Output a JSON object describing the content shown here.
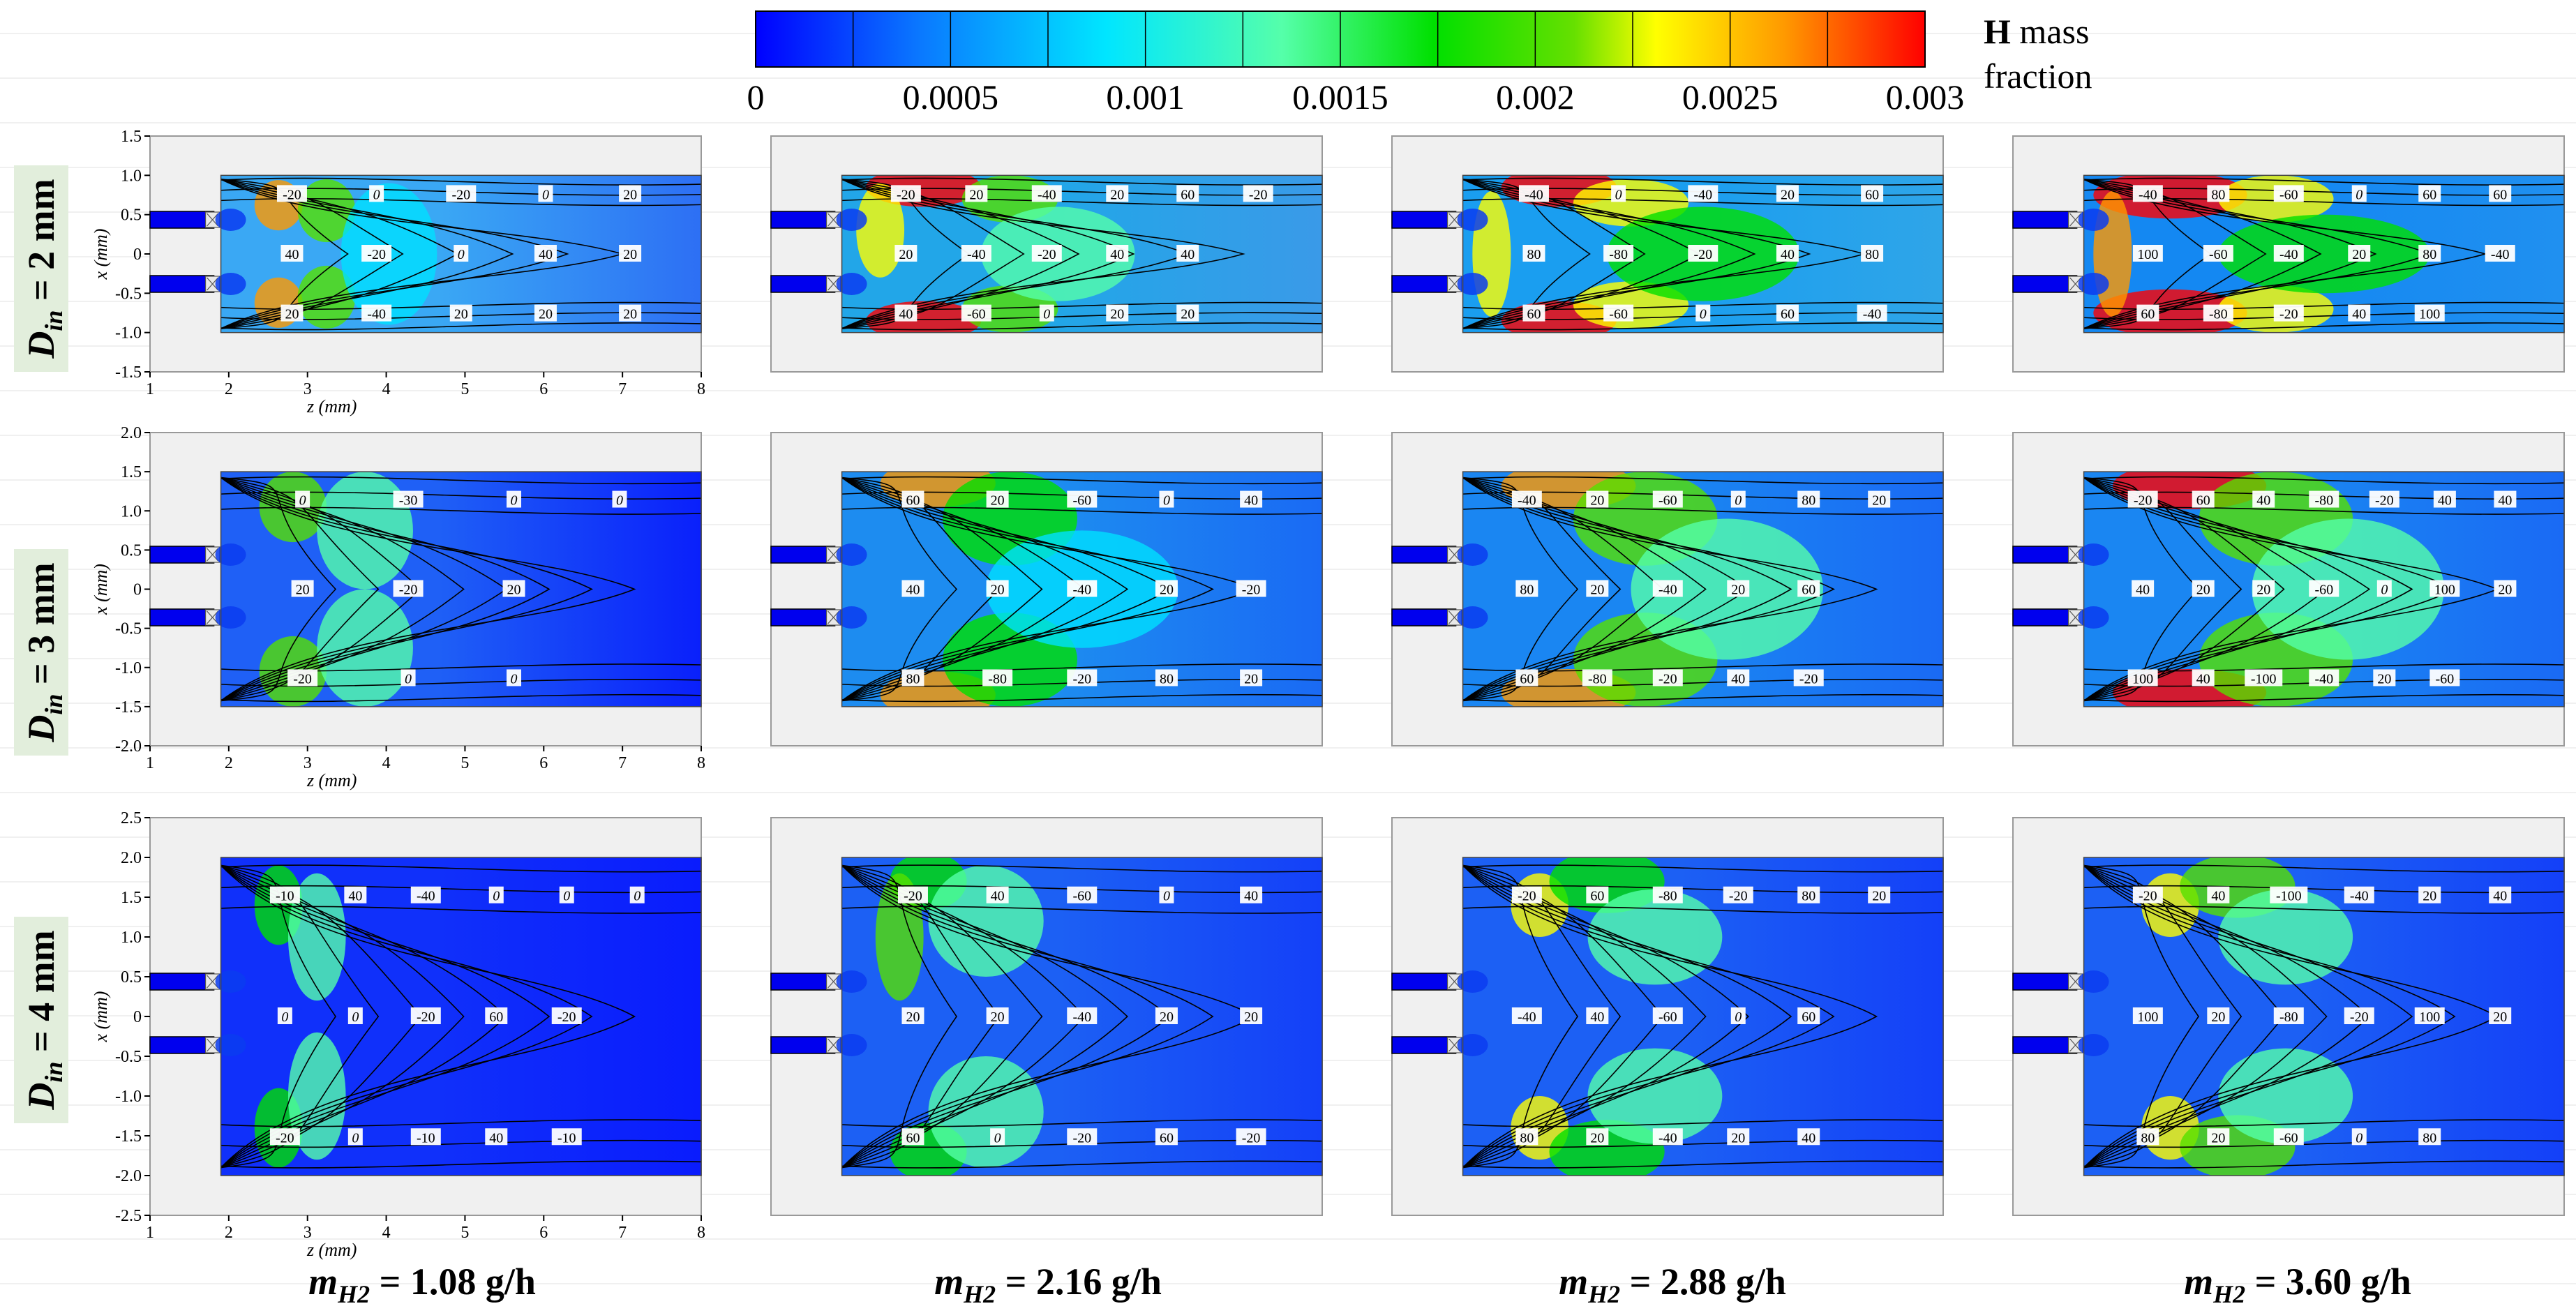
{
  "colorbar": {
    "ticks": [
      "0",
      "0.0005",
      "0.001",
      "0.0015",
      "0.002",
      "0.0025",
      "0.003"
    ],
    "title_bold": "H",
    "title_rest": "mass",
    "title_line2": "fraction",
    "range": [
      0,
      0.003
    ],
    "colors": [
      "#0000ff",
      "#0a78ff",
      "#00e0ff",
      "#55ffaa",
      "#00e000",
      "#55e000",
      "#ffff00",
      "#ff9900",
      "#ff0000"
    ]
  },
  "rows": [
    {
      "label_main": "D",
      "label_sub": "in",
      "label_rest": " = 2 mm"
    },
    {
      "label_main": "D",
      "label_sub": "in",
      "label_rest": " = 3 mm"
    },
    {
      "label_main": "D",
      "label_sub": "in",
      "label_rest": " = 4 mm"
    }
  ],
  "columns": [
    {
      "label_main": "m",
      "label_sub": "H2",
      "label_rest": " = 1.08 g/h"
    },
    {
      "label_main": "m",
      "label_sub": "H2",
      "label_rest": " = 2.16 g/h"
    },
    {
      "label_main": "m",
      "label_sub": "H2",
      "label_rest": " = 2.88 g/h"
    },
    {
      "label_main": "m",
      "label_sub": "H2",
      "label_rest": " = 3.60 g/h"
    }
  ],
  "axes": {
    "xlabel": "z (mm)",
    "ylabel": "x (mm)",
    "xticks": [
      "1",
      "2",
      "3",
      "4",
      "5",
      "6",
      "7",
      "8"
    ],
    "yticks_row1": [
      "1.5",
      "1.0",
      "0.5",
      "0",
      "-0.5",
      "-1.0",
      "-1.5"
    ],
    "yticks_row2": [
      "2.0",
      "1.5",
      "1.0",
      "0.5",
      "0",
      "-0.5",
      "-1.0",
      "-1.5",
      "-2.0"
    ],
    "yticks_row3": [
      "2.5",
      "2.0",
      "1.5",
      "1.0",
      "0.5",
      "0",
      "-0.5",
      "-1.0",
      "-1.5",
      "-2.0",
      "-2.5"
    ]
  },
  "chart_data": [
    {
      "type": "heatmap",
      "title": "D_in = 2 mm, m_H2 = 1.08 g/h",
      "xlabel": "z (mm)",
      "ylabel": "x (mm)",
      "xlim": [
        1,
        8
      ],
      "ylim": [
        -1.5,
        1.5
      ],
      "contour_labels": [
        "-20",
        "40",
        "20",
        "0",
        "-20",
        "-40",
        "-20",
        "0",
        "20",
        "0",
        "40",
        "20",
        "20",
        "20",
        "20"
      ]
    },
    {
      "type": "heatmap",
      "title": "D_in = 2 mm, m_H2 = 2.16 g/h",
      "xlim": [
        1,
        8
      ],
      "ylim": [
        -1.5,
        1.5
      ],
      "contour_labels": [
        "-20",
        "20",
        "40",
        "20",
        "-40",
        "-60",
        "-40",
        "-20",
        "0",
        "20",
        "40",
        "20",
        "60",
        "40",
        "20",
        "-20"
      ]
    },
    {
      "type": "heatmap",
      "title": "D_in = 2 mm, m_H2 = 2.88 g/h",
      "xlim": [
        1,
        8
      ],
      "ylim": [
        -1.5,
        1.5
      ],
      "contour_labels": [
        "-40",
        "80",
        "60",
        "0",
        "-80",
        "-60",
        "-40",
        "-20",
        "0",
        "20",
        "40",
        "60",
        "60",
        "80",
        "-40"
      ]
    },
    {
      "type": "heatmap",
      "title": "D_in = 2 mm, m_H2 = 3.60 g/h",
      "xlim": [
        1,
        8
      ],
      "ylim": [
        -1.5,
        1.5
      ],
      "contour_labels": [
        "-40",
        "100",
        "60",
        "80",
        "-60",
        "-80",
        "-60",
        "-40",
        "-20",
        "0",
        "20",
        "40",
        "60",
        "80",
        "100",
        "60",
        "-40"
      ]
    },
    {
      "type": "heatmap",
      "title": "D_in = 3 mm, m_H2 = 1.08 g/h",
      "xlabel": "z (mm)",
      "ylabel": "x (mm)",
      "xlim": [
        1,
        8
      ],
      "ylim": [
        -2.0,
        2.0
      ],
      "contour_labels": [
        "0",
        "20",
        "-20",
        "-30",
        "-20",
        "0",
        "0",
        "20",
        "0",
        "0"
      ]
    },
    {
      "type": "heatmap",
      "title": "D_in = 3 mm, m_H2 = 2.16 g/h",
      "xlim": [
        1,
        8
      ],
      "ylim": [
        -2.0,
        2.0
      ],
      "contour_labels": [
        "60",
        "40",
        "80",
        "20",
        "20",
        "-80",
        "-60",
        "-40",
        "-20",
        "0",
        "20",
        "80",
        "40",
        "-20",
        "20"
      ]
    },
    {
      "type": "heatmap",
      "title": "D_in = 3 mm, m_H2 = 2.88 g/h",
      "xlim": [
        1,
        8
      ],
      "ylim": [
        -2.0,
        2.0
      ],
      "contour_labels": [
        "-40",
        "80",
        "60",
        "20",
        "20",
        "-80",
        "-60",
        "-40",
        "-20",
        "0",
        "20",
        "40",
        "80",
        "60",
        "-20",
        "20"
      ]
    },
    {
      "type": "heatmap",
      "title": "D_in = 3 mm, m_H2 = 3.60 g/h",
      "xlim": [
        1,
        8
      ],
      "ylim": [
        -2.0,
        2.0
      ],
      "contour_labels": [
        "-20",
        "40",
        "100",
        "60",
        "20",
        "40",
        "40",
        "20",
        "-100",
        "-80",
        "-60",
        "-40",
        "-20",
        "0",
        "20",
        "40",
        "100",
        "-60",
        "40",
        "20"
      ]
    },
    {
      "type": "heatmap",
      "title": "D_in = 4 mm, m_H2 = 1.08 g/h",
      "xlabel": "z (mm)",
      "ylabel": "x (mm)",
      "xlim": [
        1,
        8
      ],
      "ylim": [
        -2.5,
        2.5
      ],
      "contour_labels": [
        "-10",
        "0",
        "-20",
        "40",
        "0",
        "0",
        "-40",
        "-20",
        "-10",
        "0",
        "60",
        "40",
        "0",
        "-20",
        "-10",
        "0"
      ]
    },
    {
      "type": "heatmap",
      "title": "D_in = 4 mm, m_H2 = 2.16 g/h",
      "xlim": [
        1,
        8
      ],
      "ylim": [
        -2.5,
        2.5
      ],
      "contour_labels": [
        "-20",
        "20",
        "60",
        "40",
        "20",
        "0",
        "-60",
        "-40",
        "-20",
        "0",
        "20",
        "60",
        "40",
        "20",
        "-20"
      ]
    },
    {
      "type": "heatmap",
      "title": "D_in = 4 mm, m_H2 = 2.88 g/h",
      "xlim": [
        1,
        8
      ],
      "ylim": [
        -2.5,
        2.5
      ],
      "contour_labels": [
        "-20",
        "-40",
        "80",
        "60",
        "40",
        "20",
        "-80",
        "-60",
        "-40",
        "-20",
        "0",
        "20",
        "80",
        "60",
        "40",
        "20"
      ]
    },
    {
      "type": "heatmap",
      "title": "D_in = 4 mm, m_H2 = 3.60 g/h",
      "xlim": [
        1,
        8
      ],
      "ylim": [
        -2.5,
        2.5
      ],
      "contour_labels": [
        "-20",
        "100",
        "80",
        "40",
        "20",
        "20",
        "-100",
        "-80",
        "-60",
        "-40",
        "-20",
        "0",
        "20",
        "100",
        "80",
        "40",
        "20"
      ]
    }
  ]
}
